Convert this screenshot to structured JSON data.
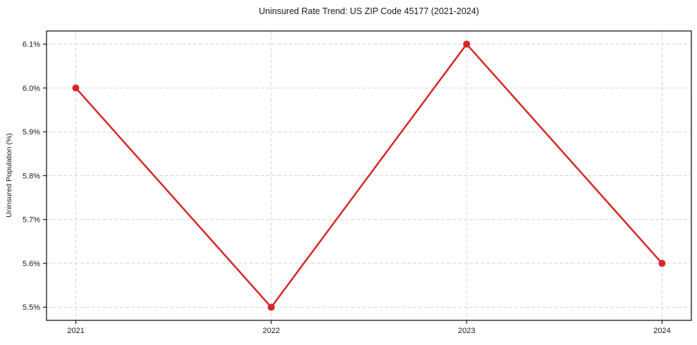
{
  "chart_data": {
    "type": "line",
    "title": "Uninsured Rate Trend: US ZIP Code 45177 (2021-2024)",
    "xlabel": "",
    "ylabel": "Uninsured Population (%)",
    "x": [
      2021,
      2022,
      2023,
      2024
    ],
    "values": [
      6.0,
      5.5,
      6.1,
      5.6
    ],
    "xlim": [
      2020.85,
      2024.15
    ],
    "ylim": [
      5.47,
      6.13
    ],
    "xticks": {
      "values": [
        2021,
        2022,
        2023,
        2024
      ],
      "labels": [
        "2021",
        "2022",
        "2023",
        "2024"
      ]
    },
    "yticks": {
      "values": [
        5.5,
        5.6,
        5.7,
        5.8,
        5.9,
        6.0,
        6.1
      ],
      "labels": [
        "5.5%",
        "5.6%",
        "5.7%",
        "5.8%",
        "5.9%",
        "6.0%",
        "6.1%"
      ]
    },
    "grid": true,
    "grid_style": "dashed",
    "legend": false,
    "marker": "circle",
    "colors": {
      "line": "#d62728",
      "marker": "#d62728",
      "grid": "#d6d6d6",
      "frame": "#1a1a1a",
      "text": "#1a1a1a",
      "background": "#ffffff"
    }
  }
}
